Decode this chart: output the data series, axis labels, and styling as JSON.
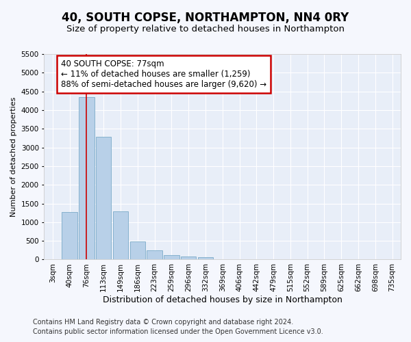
{
  "title": "40, SOUTH COPSE, NORTHAMPTON, NN4 0RY",
  "subtitle": "Size of property relative to detached houses in Northampton",
  "xlabel": "Distribution of detached houses by size in Northampton",
  "ylabel": "Number of detached properties",
  "categories": [
    "3sqm",
    "40sqm",
    "76sqm",
    "113sqm",
    "149sqm",
    "186sqm",
    "223sqm",
    "259sqm",
    "296sqm",
    "332sqm",
    "369sqm",
    "406sqm",
    "442sqm",
    "479sqm",
    "515sqm",
    "552sqm",
    "589sqm",
    "625sqm",
    "662sqm",
    "698sqm",
    "735sqm"
  ],
  "values": [
    0,
    1270,
    4350,
    3280,
    1290,
    480,
    240,
    110,
    80,
    60,
    0,
    0,
    0,
    0,
    0,
    0,
    0,
    0,
    0,
    0,
    0
  ],
  "bar_color": "#b8d0e8",
  "bar_edge_color": "#7aaac8",
  "vline_color": "#cc0000",
  "vline_x": 2,
  "annotation_text": "40 SOUTH COPSE: 77sqm\n← 11% of detached houses are smaller (1,259)\n88% of semi-detached houses are larger (9,620) →",
  "annotation_box_facecolor": "#ffffff",
  "annotation_box_edgecolor": "#cc0000",
  "ylim": [
    0,
    5500
  ],
  "yticks": [
    0,
    500,
    1000,
    1500,
    2000,
    2500,
    3000,
    3500,
    4000,
    4500,
    5000,
    5500
  ],
  "footnote1": "Contains HM Land Registry data © Crown copyright and database right 2024.",
  "footnote2": "Contains public sector information licensed under the Open Government Licence v3.0.",
  "bg_color": "#f5f7fd",
  "plot_bg_color": "#e8eef8",
  "grid_color": "#ffffff",
  "title_fontsize": 12,
  "subtitle_fontsize": 9.5,
  "xlabel_fontsize": 9,
  "ylabel_fontsize": 8,
  "tick_fontsize": 7.5,
  "annotation_fontsize": 8.5,
  "footnote_fontsize": 7
}
